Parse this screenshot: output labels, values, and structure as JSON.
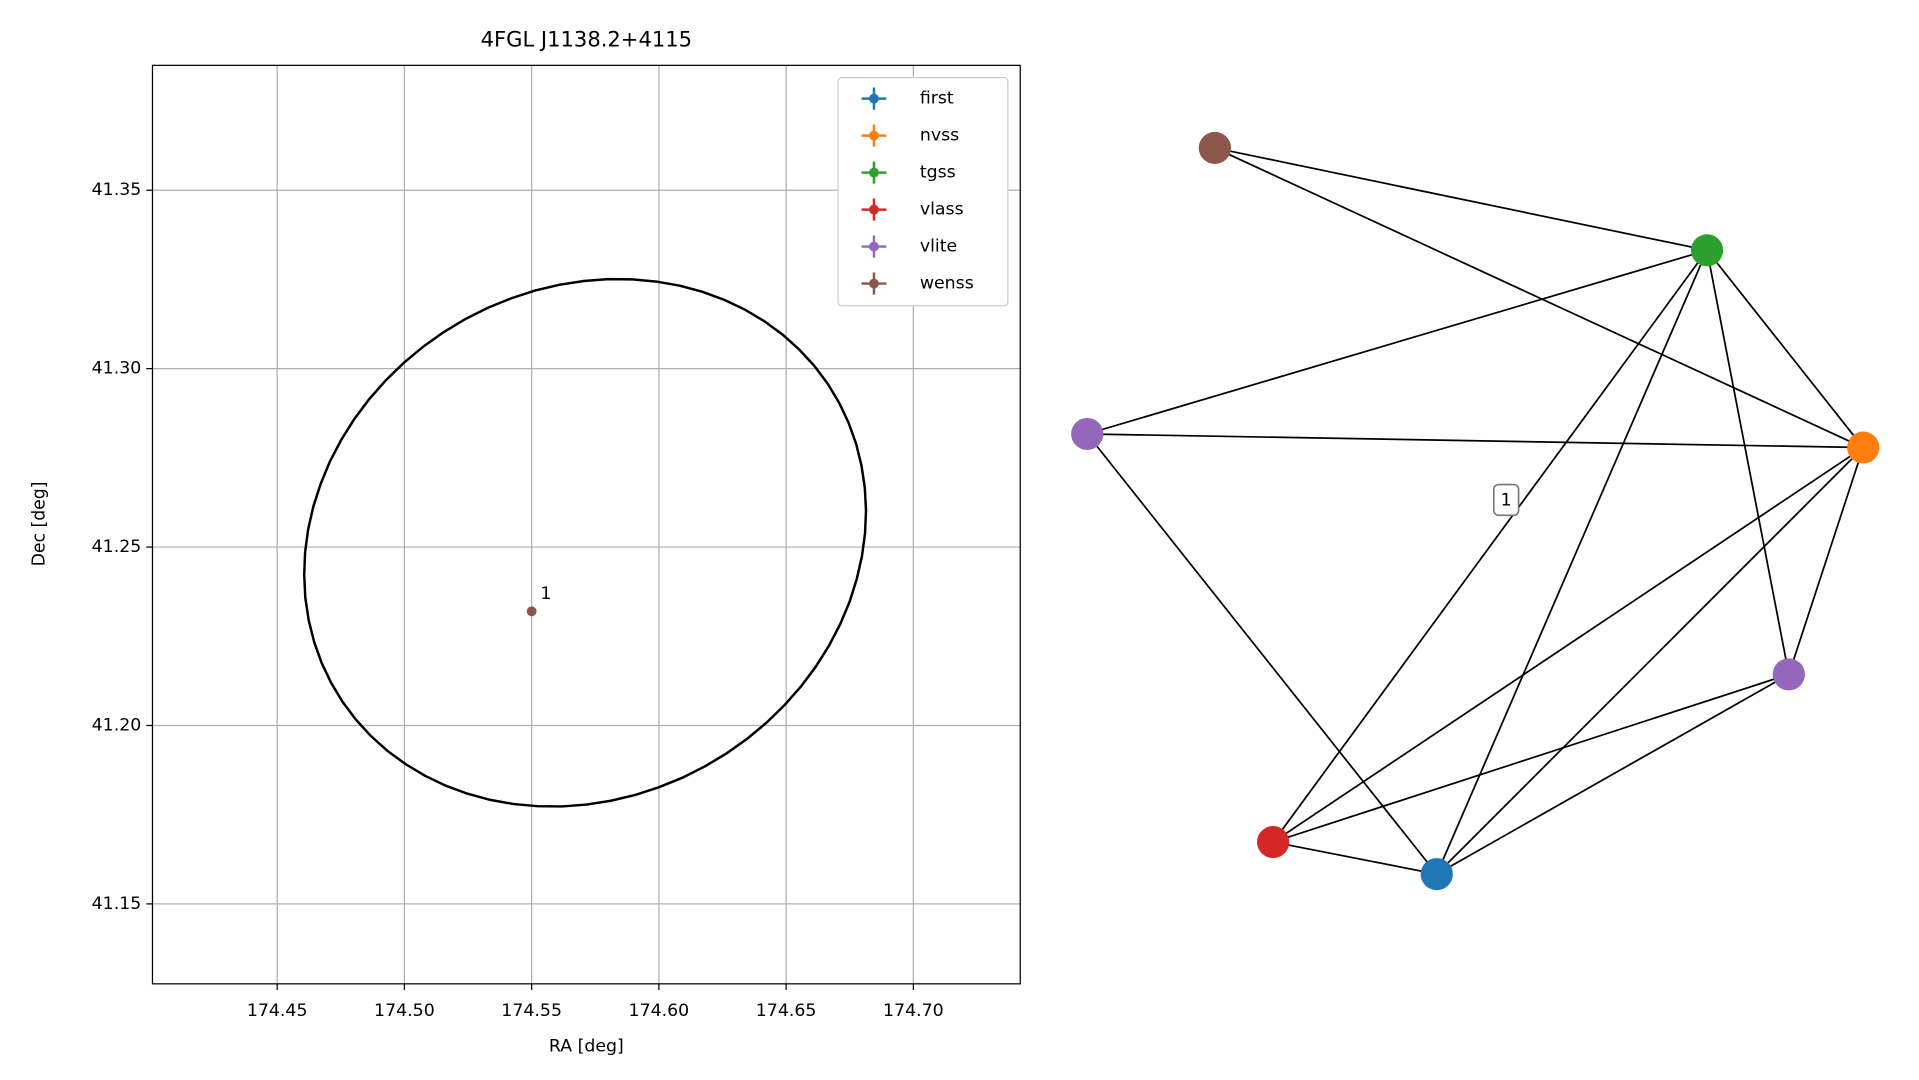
{
  "chart_data": [
    {
      "type": "scatter",
      "title": "4FGL J1138.2+4115",
      "xlabel": "RA [deg]",
      "ylabel": "Dec [deg]",
      "xlim": [
        174.401,
        174.742
      ],
      "xticks": [
        174.45,
        {
          "value": 174.5,
          "label": "174.50"
        },
        174.55,
        {
          "value": 174.6,
          "label": "174.60"
        },
        174.65,
        {
          "value": 174.7,
          "label": "174.70"
        }
      ],
      "ylim": [
        41.1276,
        41.385
      ],
      "yticks": [
        41.15,
        {
          "value": 41.2,
          "label": "41.20"
        },
        41.25,
        {
          "value": 41.3,
          "label": "41.30"
        },
        41.35
      ],
      "grid": true,
      "legend": "upper right",
      "ellipse": {
        "center": [
          174.571,
          41.2512
        ],
        "width": 0.111,
        "height": 0.073,
        "angle": 8,
        "color": "#000000"
      },
      "series": [
        {
          "name": "first",
          "color": "#1f77b4",
          "x": [],
          "y": []
        },
        {
          "name": "nvss",
          "color": "#ff7f0e",
          "x": [],
          "y": []
        },
        {
          "name": "tgss",
          "color": "#2ca02c",
          "x": [],
          "y": []
        },
        {
          "name": "vlass",
          "color": "#d62728",
          "x": [],
          "y": []
        },
        {
          "name": "vlite",
          "color": "#9467bd",
          "x": [],
          "y": []
        },
        {
          "name": "wenss",
          "color": "#8c564b",
          "x": [
            174.55
          ],
          "y": [
            41.232
          ],
          "labels": [
            "1"
          ]
        }
      ]
    },
    {
      "type": "graph",
      "annotation": "1",
      "nodes": [
        {
          "color": "#8c564b"
        },
        {
          "color": "#2ca02c"
        },
        {
          "color": "#9467bd"
        },
        {
          "color": "#ff7f0e"
        },
        {
          "color": "#9467bd"
        },
        {
          "color": "#d62728"
        },
        {
          "color": "#1f77b4"
        }
      ],
      "edges": [
        [
          0,
          1
        ],
        [
          0,
          3
        ],
        [
          1,
          2
        ],
        [
          1,
          3
        ],
        [
          1,
          5
        ],
        [
          1,
          6
        ],
        [
          1,
          4
        ],
        [
          2,
          3
        ],
        [
          2,
          6
        ],
        [
          3,
          5
        ],
        [
          3,
          6
        ],
        [
          3,
          4
        ],
        [
          4,
          5
        ],
        [
          4,
          6
        ],
        [
          5,
          6
        ]
      ]
    }
  ]
}
